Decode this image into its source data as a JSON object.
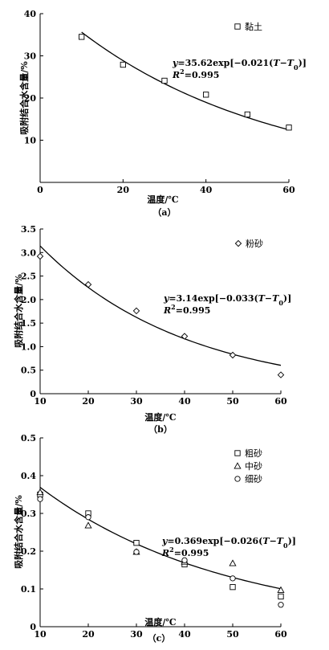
{
  "chart_data": [
    {
      "type": "scatter",
      "panel_label": "（a）",
      "xlabel": "温度/℃",
      "ylabel": "吸附结合水含量/%",
      "xlim": [
        0,
        60
      ],
      "ylim": [
        0,
        40
      ],
      "xticks": [
        "0",
        "20",
        "40",
        "60"
      ],
      "yticks": [
        "10",
        "20",
        "30",
        "40"
      ],
      "series": [
        {
          "name": "黏土",
          "marker": "square",
          "points": [
            [
              10,
              34.5
            ],
            [
              20,
              27.9
            ],
            [
              30,
              24.1
            ],
            [
              40,
              20.8
            ],
            [
              50,
              16.1
            ],
            [
              60,
              13.0
            ]
          ]
        }
      ],
      "fit": {
        "a": 35.62,
        "b": 0.021,
        "t0": 10
      },
      "equation": "y=35.62exp[−0.021(T−T0)]",
      "r2": "R2=0.995",
      "legend_position": "top-right",
      "grid": false
    },
    {
      "type": "scatter",
      "panel_label": "（b）",
      "xlabel": "温度/℃",
      "ylabel": "吸附结合水含量/%",
      "xlim": [
        10,
        60
      ],
      "ylim": [
        0,
        3.5
      ],
      "xticks": [
        "10",
        "20",
        "30",
        "40",
        "50",
        "60"
      ],
      "yticks": [
        "0",
        "0.5",
        "1.0",
        "1.5",
        "2.0",
        "2.5",
        "3.0",
        "3.5"
      ],
      "series": [
        {
          "name": "粉砂",
          "marker": "diamond",
          "points": [
            [
              10,
              2.92
            ],
            [
              20,
              2.32
            ],
            [
              30,
              1.76
            ],
            [
              40,
              1.22
            ],
            [
              50,
              0.82
            ],
            [
              60,
              0.4
            ]
          ]
        }
      ],
      "fit": {
        "a": 3.14,
        "b": 0.033,
        "t0": 10
      },
      "equation": "y=3.14exp[−0.033(T−T0)]",
      "r2": "R2=0.995",
      "legend_position": "top-right",
      "grid": false
    },
    {
      "type": "scatter",
      "panel_label": "（c）",
      "xlabel": "温度/℃",
      "ylabel": "吸附结合水含量/%",
      "xlim": [
        10,
        60
      ],
      "ylim": [
        0,
        0.5
      ],
      "xticks": [
        "10",
        "20",
        "30",
        "40",
        "50",
        "60"
      ],
      "yticks": [
        "0",
        "0.1",
        "0.2",
        "0.3",
        "0.4",
        "0.5"
      ],
      "series": [
        {
          "name": "粗砂",
          "marker": "square",
          "points": [
            [
              10,
              0.35
            ],
            [
              20,
              0.3
            ],
            [
              30,
              0.222
            ],
            [
              40,
              0.165
            ],
            [
              50,
              0.105
            ],
            [
              60,
              0.08
            ]
          ]
        },
        {
          "name": "中砂",
          "marker": "triangle",
          "points": [
            [
              10,
              0.356
            ],
            [
              20,
              0.268
            ],
            [
              30,
              0.198
            ],
            [
              40,
              0.172
            ],
            [
              50,
              0.168
            ],
            [
              60,
              0.097
            ]
          ]
        },
        {
          "name": "细砂",
          "marker": "circle",
          "points": [
            [
              10,
              0.338
            ],
            [
              20,
              0.29
            ],
            [
              30,
              0.198
            ],
            [
              40,
              0.176
            ],
            [
              50,
              0.128
            ],
            [
              60,
              0.058
            ]
          ]
        }
      ],
      "fit": {
        "a": 0.369,
        "b": 0.026,
        "t0": 10
      },
      "equation": "y=0.369exp[−0.026(T−T0)]",
      "r2": "R2=0.995",
      "legend_position": "top-right",
      "grid": false
    }
  ]
}
